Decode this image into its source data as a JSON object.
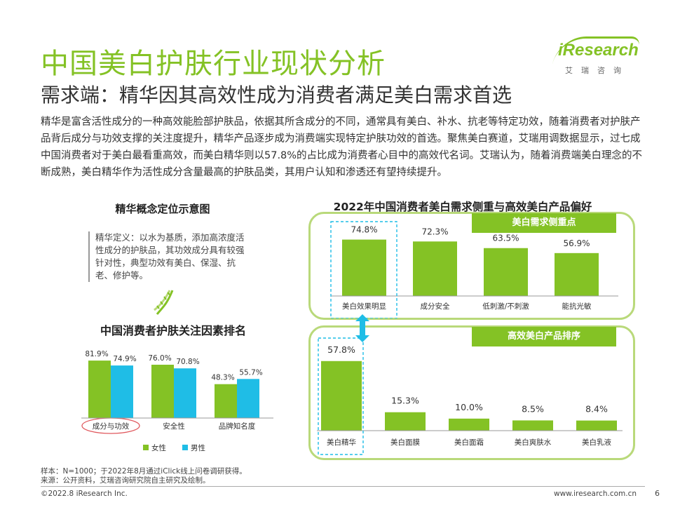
{
  "header": {
    "title": "中国美白护肤行业现状分析",
    "subtitle": "需求端：精华因其高效性成为消费者满足美白需求首选",
    "body": "精华是富含活性成分的一种高效能脸部护肤品，依据其所含成分的不同，通常具有美白、补水、抗老等特定功效，随着消费者对护肤产品背后成分与功效支撑的关注度提升，精华产品逐步成为消费端实现特定护肤功效的首选。聚焦美白赛道，艾瑞用调数据显示，过七成中国消费者对于美白最看重高效，而美白精华则以57.8%的占比成为消费者心目中的高效代名词。艾瑞认为，随着消费端美白理念的不断成熟，美白精华作为活性成分含量最高的护肤品类，其用户认知和渗透还有望持续提升。"
  },
  "logo": {
    "word": "iResearch",
    "cn": "艾瑞咨询"
  },
  "left_panel": {
    "concept_title": "精华概念定位示意图",
    "definition": "精华定义：以水为基质，添加高浓度活性成分的护肤品，其功效成分具有较强针对性，典型功效有美白、保湿、抗老、修护等。",
    "dna_icon": "dna-icon"
  },
  "colors": {
    "green": "#84c225",
    "blue": "#1fbde6",
    "panel_border": "#b9d97a",
    "highlight_dash": "#1fbde6",
    "circle": "#e0595e"
  },
  "chart_data": [
    {
      "type": "bar",
      "title": "中国消费者护肤关注因素排名",
      "categories": [
        "成分与功效",
        "安全性",
        "品牌知名度"
      ],
      "series": [
        {
          "name": "女性",
          "values": [
            81.9,
            76.0,
            48.3
          ],
          "labels": [
            "81.9%",
            "76.0%",
            "48.3%"
          ]
        },
        {
          "name": "男性",
          "values": [
            74.9,
            70.8,
            55.7
          ],
          "labels": [
            "74.9%",
            "70.8%",
            "55.7%"
          ]
        }
      ],
      "ylim": [
        0,
        100
      ],
      "legend": "bottom",
      "highlight_category": "成分与功效"
    },
    {
      "type": "bar",
      "title": "2022年中国消费者美白需求侧重与高效美白产品偏好",
      "panel_tag": "美白需求侧重点",
      "categories": [
        "美白效果明显",
        "成分安全",
        "低刺激/不刺激",
        "能抗光敏"
      ],
      "values": [
        74.8,
        72.3,
        63.5,
        56.9
      ],
      "labels": [
        "74.8%",
        "72.3%",
        "63.5%",
        "56.9%"
      ],
      "ylim": [
        0,
        100
      ],
      "highlight_category": "美白效果明显"
    },
    {
      "type": "bar",
      "panel_tag": "高效美白产品排序",
      "categories": [
        "美白精华",
        "美白面膜",
        "美白面霜",
        "美白爽肤水",
        "美白乳液"
      ],
      "values": [
        57.8,
        15.3,
        10.0,
        8.5,
        8.4
      ],
      "labels": [
        "57.8%",
        "15.3%",
        "10.0%",
        "8.5%",
        "8.4%"
      ],
      "ylim": [
        0,
        70
      ],
      "highlight_category": "美白精华"
    }
  ],
  "footer": {
    "note1": "样本：N=1000；于2022年8月通过iClick线上问卷调研获得。",
    "note2": "来源：公开资料，艾瑞咨询研究院自主研究及绘制。",
    "copyright": "©2022.8 iResearch Inc.",
    "website": "www.iresearch.com.cn",
    "page": "6"
  }
}
